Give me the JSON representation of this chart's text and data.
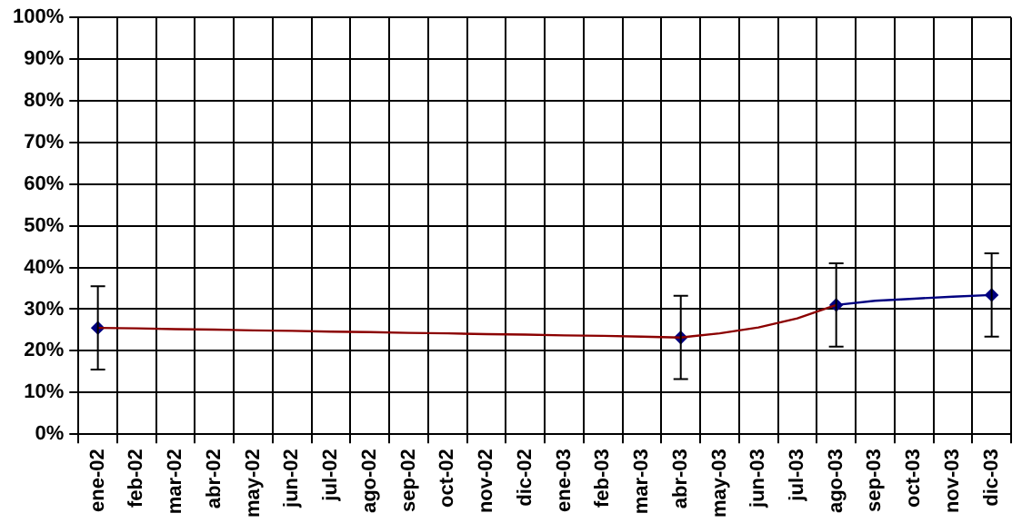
{
  "chart_data": {
    "type": "line",
    "categories": [
      "ene-02",
      "feb-02",
      "mar-02",
      "abr-02",
      "may-02",
      "jun-02",
      "jul-02",
      "ago-02",
      "sep-02",
      "oct-02",
      "nov-02",
      "dic-02",
      "ene-03",
      "feb-03",
      "mar-03",
      "abr-03",
      "may-03",
      "jun-03",
      "jul-03",
      "ago-03",
      "sep-03",
      "oct-03",
      "nov-03",
      "dic-03"
    ],
    "series": [
      {
        "color": "#8b0000",
        "marker": "none",
        "values": [
          25.5,
          25.4,
          25.2,
          25.1,
          24.9,
          24.8,
          24.6,
          24.5,
          24.3,
          24.2,
          24.0,
          23.9,
          23.7,
          23.6,
          23.4,
          23.2,
          24.2,
          25.6,
          27.8,
          31.0,
          null,
          null,
          null,
          null
        ]
      },
      {
        "color": "#000080",
        "marker": "none",
        "values": [
          null,
          null,
          null,
          null,
          null,
          null,
          null,
          null,
          null,
          null,
          null,
          null,
          null,
          null,
          null,
          null,
          null,
          null,
          null,
          31.0,
          32.0,
          32.5,
          33.0,
          33.4
        ]
      },
      {
        "type": "scatter",
        "color": "#000080",
        "marker": "diamond",
        "x": [
          "ene-02",
          "abr-03",
          "ago-03",
          "dic-03"
        ],
        "values": [
          25.5,
          23.2,
          31.0,
          33.4
        ],
        "errors": [
          10,
          10,
          10,
          10
        ]
      }
    ],
    "ylim": [
      0,
      100
    ],
    "yticks": [
      {
        "value": 0,
        "label": "0%"
      },
      {
        "value": 10,
        "label": "10%"
      },
      {
        "value": 20,
        "label": "20%"
      },
      {
        "value": 30,
        "label": "30%"
      },
      {
        "value": 40,
        "label": "40%"
      },
      {
        "value": 50,
        "label": "50%"
      },
      {
        "value": 60,
        "label": "60%"
      },
      {
        "value": 70,
        "label": "70%"
      },
      {
        "value": 80,
        "label": "80%"
      },
      {
        "value": 90,
        "label": "90%"
      },
      {
        "value": 100,
        "label": "100%"
      }
    ],
    "grid": true,
    "legend": false
  }
}
